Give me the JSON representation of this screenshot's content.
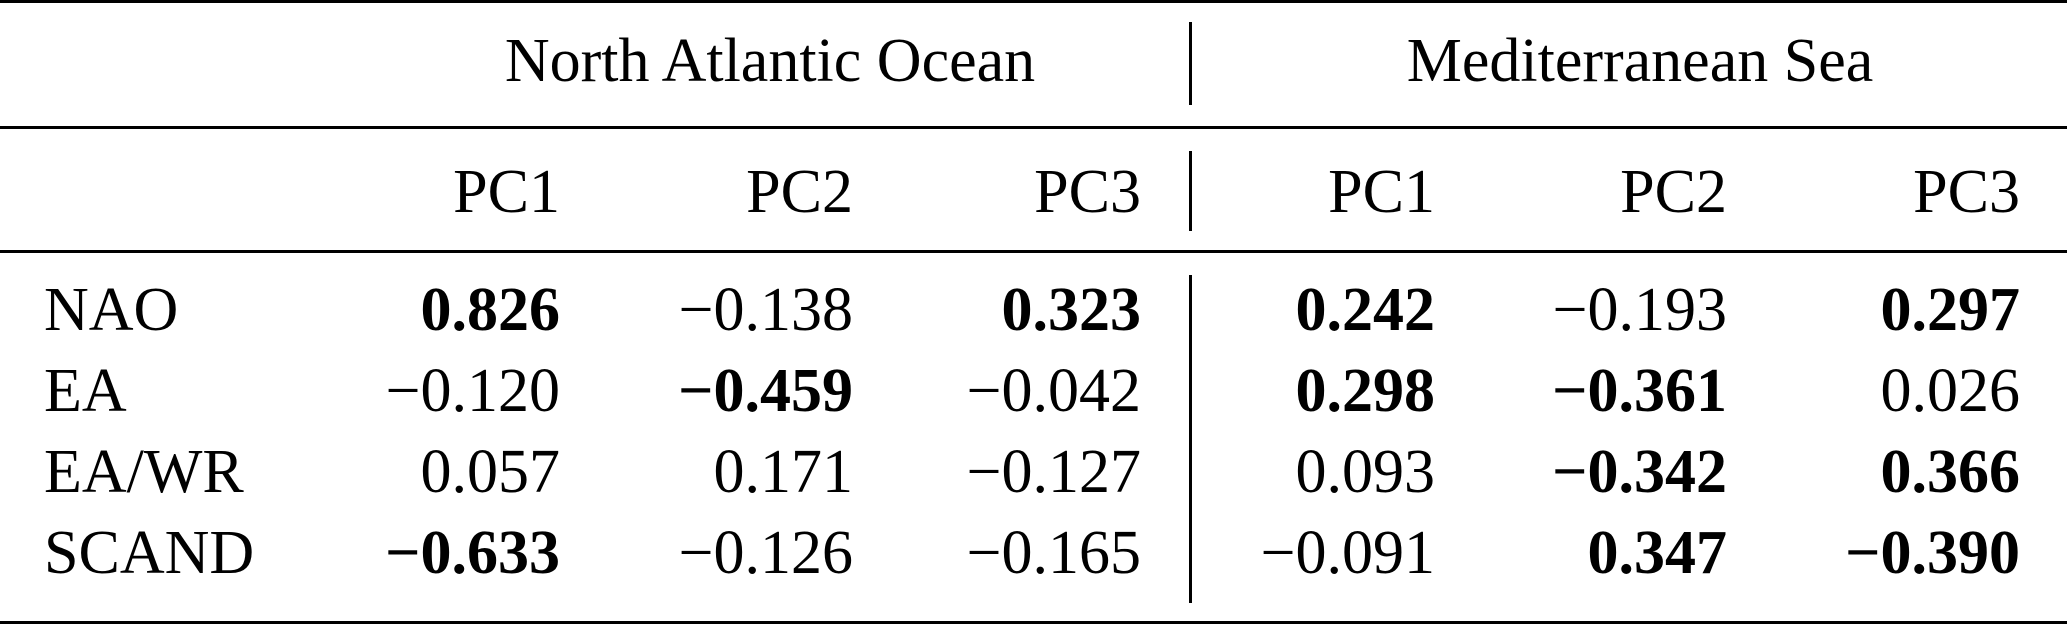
{
  "table": {
    "groups": [
      {
        "label": "North Atlantic Ocean",
        "columns": [
          "PC1",
          "PC2",
          "PC3"
        ]
      },
      {
        "label": "Mediterranean Sea",
        "columns": [
          "PC1",
          "PC2",
          "PC3"
        ]
      }
    ],
    "rows": [
      {
        "label": "NAO",
        "values": [
          "0.826",
          "−0.138",
          "0.323",
          "0.242",
          "−0.193",
          "0.297"
        ],
        "bold": [
          true,
          false,
          true,
          true,
          false,
          true
        ]
      },
      {
        "label": "EA",
        "values": [
          "−0.120",
          "−0.459",
          "−0.042",
          "0.298",
          "−0.361",
          "0.026"
        ],
        "bold": [
          false,
          true,
          false,
          true,
          true,
          false
        ]
      },
      {
        "label": "EA/WR",
        "values": [
          "0.057",
          "0.171",
          "−0.127",
          "0.093",
          "−0.342",
          "0.366"
        ],
        "bold": [
          false,
          false,
          false,
          false,
          true,
          true
        ]
      },
      {
        "label": "SCAND",
        "values": [
          "−0.633",
          "−0.126",
          "−0.165",
          "−0.091",
          "0.347",
          "−0.390"
        ],
        "bold": [
          true,
          false,
          false,
          false,
          true,
          true
        ]
      }
    ]
  }
}
